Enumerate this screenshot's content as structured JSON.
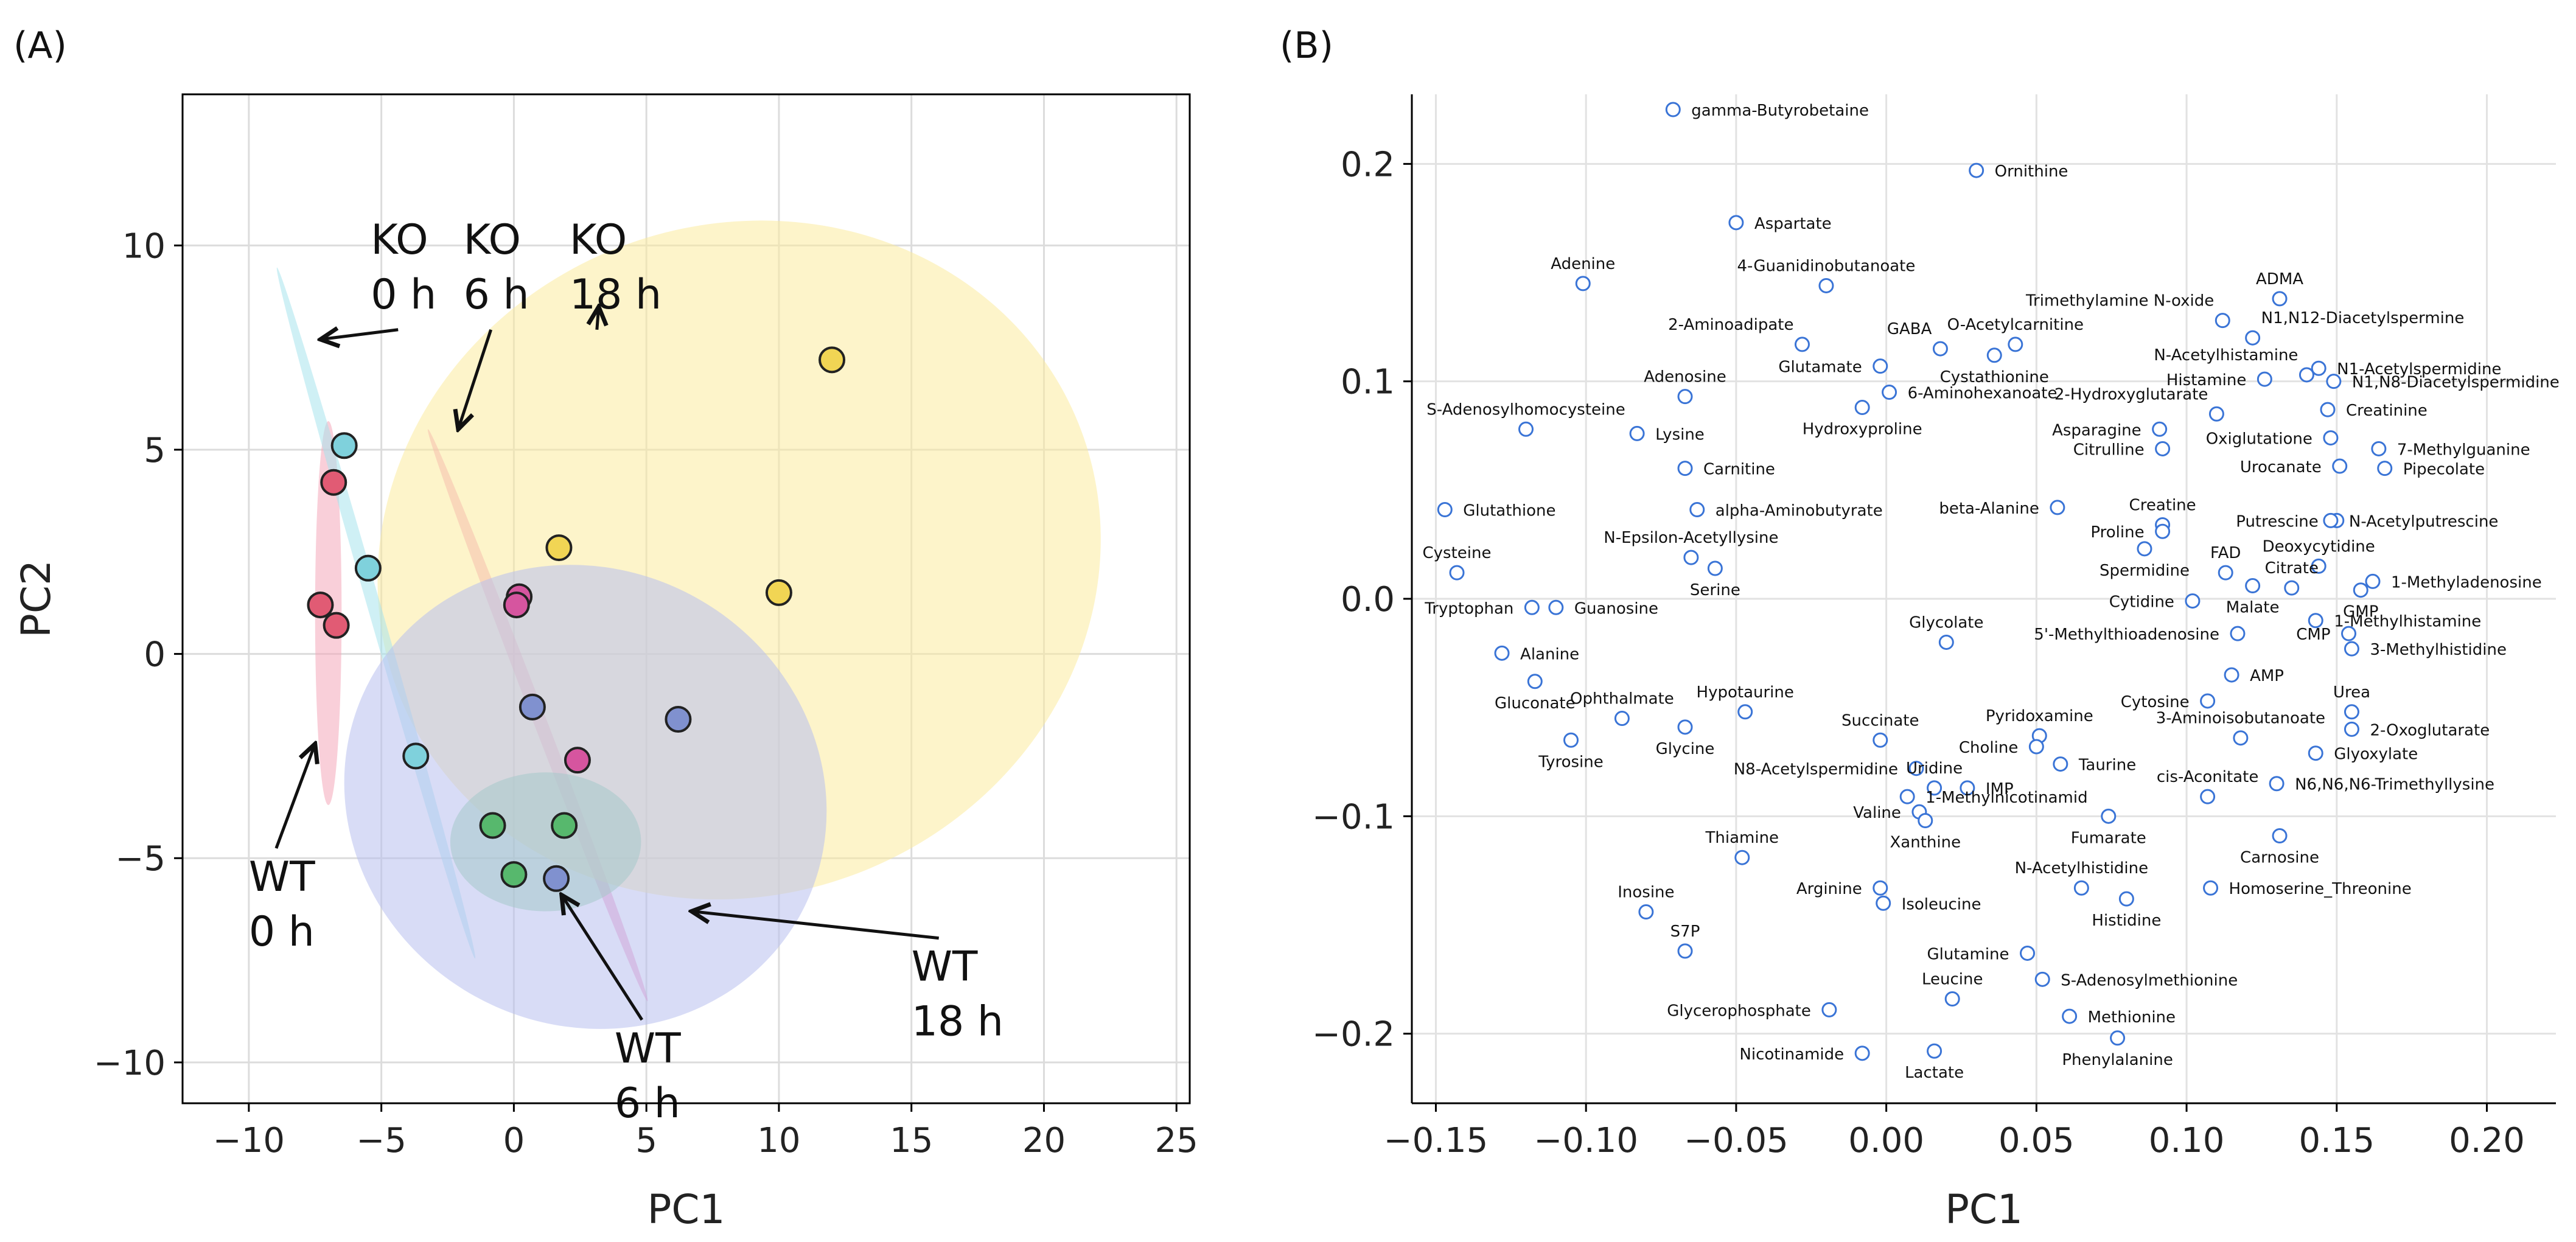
{
  "panels": {
    "A": {
      "label": "(A)",
      "chart_data": {
        "type": "scatter",
        "xlabel": "PC1",
        "ylabel": "PC2",
        "xlim": [
          -12.5,
          25.5
        ],
        "ylim": [
          -11,
          13.7
        ],
        "xticks": [
          -10,
          -5,
          0,
          5,
          10,
          15,
          20,
          25
        ],
        "yticks": [
          -10,
          -5,
          0,
          5,
          10
        ],
        "xtick_labels": [
          "−10",
          "−5",
          "0",
          "5",
          "10",
          "15",
          "20",
          "25"
        ],
        "ytick_labels": [
          "−10",
          "−5",
          "0",
          "5",
          "10"
        ],
        "grid": true,
        "series": [
          {
            "name": "KO 0 h",
            "color": "#e15b74",
            "ellipse_color": "#f4a7b9",
            "ellipse": {
              "cx": -7.0,
              "cy": 1.0,
              "rx": 0.5,
              "ry": 4.7,
              "angle": 0
            },
            "points": [
              [
                -6.8,
                4.2
              ],
              [
                -7.3,
                1.2
              ],
              [
                -6.7,
                0.7
              ]
            ]
          },
          {
            "name": "KO 6 h",
            "color": "#d6559f",
            "ellipse_color": "#ee88bf",
            "ellipse": {
              "cx": 0.9,
              "cy": -1.5,
              "rx": 0.25,
              "ry": 7.5,
              "angle": 21
            },
            "points": [
              [
                0.2,
                1.4
              ],
              [
                0.1,
                1.2
              ],
              [
                2.4,
                -2.6
              ]
            ]
          },
          {
            "name": "KO 18 h",
            "color": "#f1d554",
            "ellipse_color": "#fbeb9e",
            "ellipse": {
              "cx": 8.5,
              "cy": 2.3,
              "rx": 13.8,
              "ry": 8.2,
              "angle": 22
            },
            "points": [
              [
                12.0,
                7.2
              ],
              [
                1.7,
                2.6
              ],
              [
                10.0,
                1.5
              ]
            ]
          },
          {
            "name": "WT 0 h",
            "color": "#7fd1dc",
            "ellipse_color": "#a8e4ec",
            "ellipse": {
              "cx": -5.2,
              "cy": 1.0,
              "rx": 0.25,
              "ry": 8.8,
              "angle": 16
            },
            "points": [
              [
                -6.4,
                5.1
              ],
              [
                -5.5,
                2.1
              ],
              [
                -3.7,
                -2.5
              ]
            ]
          },
          {
            "name": "WT 6 h",
            "color": "#57b86d",
            "ellipse_color": "#8fd39c",
            "ellipse": {
              "cx": 1.2,
              "cy": -4.6,
              "rx": 3.6,
              "ry": 1.7,
              "angle": 0
            },
            "points": [
              [
                -0.8,
                -4.2
              ],
              [
                1.9,
                -4.2
              ],
              [
                0.0,
                -5.4
              ]
            ]
          },
          {
            "name": "WT 18 h",
            "color": "#8091cf",
            "ellipse_color": "#b8c0ef",
            "ellipse": {
              "cx": 2.7,
              "cy": -3.5,
              "rx": 8.6,
              "ry": 6.0,
              "angle": 61
            },
            "points": [
              [
                0.7,
                -1.3
              ],
              [
                6.2,
                -1.6
              ],
              [
                1.6,
                -5.5
              ]
            ]
          }
        ],
        "annotations": [
          {
            "lines": [
              "KO",
              "0 h"
            ],
            "tx": -5.4,
            "ty": 9.8,
            "ax": -7.3,
            "ay": 7.7
          },
          {
            "lines": [
              "KO",
              "6 h"
            ],
            "tx": -1.9,
            "ty": 9.8,
            "ax": -2.1,
            "ay": 5.5
          },
          {
            "lines": [
              "KO",
              "18 h"
            ],
            "tx": 2.1,
            "ty": 9.8,
            "ax": 3.2,
            "ay": 8.5
          },
          {
            "lines": [
              "WT",
              "0 h"
            ],
            "tx": -10.0,
            "ty": -5.8,
            "ax": -7.5,
            "ay": -2.2
          },
          {
            "lines": [
              "WT",
              "6 h"
            ],
            "tx": 3.8,
            "ty": -10.0,
            "ax": 1.8,
            "ay": -5.9
          },
          {
            "lines": [
              "WT",
              "18 h"
            ],
            "tx": 15.0,
            "ty": -8.0,
            "ax": 6.7,
            "ay": -6.3
          }
        ]
      }
    },
    "B": {
      "label": "(B)",
      "chart_data": {
        "type": "scatter",
        "xlabel": "PC1",
        "ylabel": "",
        "xlim": [
          -0.158,
          0.223
        ],
        "ylim": [
          -0.232,
          0.232
        ],
        "xticks": [
          -0.15,
          -0.1,
          -0.05,
          0.0,
          0.05,
          0.1,
          0.15,
          0.2
        ],
        "yticks": [
          -0.2,
          -0.1,
          0.0,
          0.1,
          0.2
        ],
        "xtick_labels": [
          "−0.15",
          "−0.10",
          "−0.05",
          "0.00",
          "0.05",
          "0.10",
          "0.15",
          "0.20"
        ],
        "ytick_labels": [
          "−0.2",
          "−0.1",
          "0.0",
          "0.1",
          "0.2"
        ],
        "grid": true,
        "marker_color": "#3a74d6",
        "points": [
          {
            "name": "gamma-Butyrobetaine",
            "x": -0.071,
            "y": 0.225,
            "pos": "r"
          },
          {
            "name": "Ornithine",
            "x": 0.03,
            "y": 0.197,
            "pos": "r"
          },
          {
            "name": "Aspartate",
            "x": -0.05,
            "y": 0.173,
            "pos": "r"
          },
          {
            "name": "Adenine",
            "x": -0.101,
            "y": 0.145,
            "pos": "t"
          },
          {
            "name": "4-Guanidinobutanoate",
            "x": -0.02,
            "y": 0.144,
            "pos": "t"
          },
          {
            "name": "ADMA",
            "x": 0.131,
            "y": 0.138,
            "pos": "t"
          },
          {
            "name": "Trimethylamine N-oxide",
            "x": 0.112,
            "y": 0.128,
            "pos": "tl"
          },
          {
            "name": "N1,N12-Diacetylspermine",
            "x": 0.122,
            "y": 0.12,
            "pos": "tr"
          },
          {
            "name": "2-Aminoadipate",
            "x": -0.028,
            "y": 0.117,
            "pos": "tl"
          },
          {
            "name": "GABA",
            "x": 0.018,
            "y": 0.115,
            "pos": "tl"
          },
          {
            "name": "O-Acetylcarnitine",
            "x": 0.043,
            "y": 0.117,
            "pos": "t"
          },
          {
            "name": "Glutamate",
            "x": -0.002,
            "y": 0.107,
            "pos": "l"
          },
          {
            "name": "Cystathionine",
            "x": 0.036,
            "y": 0.112,
            "pos": "b"
          },
          {
            "name": "N-Acetylhistamine",
            "x": 0.14,
            "y": 0.103,
            "pos": "tl"
          },
          {
            "name": "N1-Acetylspermidine",
            "x": 0.144,
            "y": 0.106,
            "pos": "r"
          },
          {
            "name": "Histamine",
            "x": 0.126,
            "y": 0.101,
            "pos": "l"
          },
          {
            "name": "N1,N8-Diacetylspermidine",
            "x": 0.149,
            "y": 0.1,
            "pos": "r"
          },
          {
            "name": "Adenosine",
            "x": -0.067,
            "y": 0.093,
            "pos": "t"
          },
          {
            "name": "6-Aminohexanoate",
            "x": 0.001,
            "y": 0.095,
            "pos": "r"
          },
          {
            "name": "Hydroxyproline",
            "x": -0.008,
            "y": 0.088,
            "pos": "b"
          },
          {
            "name": "2-Hydroxyglutarate",
            "x": 0.11,
            "y": 0.085,
            "pos": "tl"
          },
          {
            "name": "Creatinine",
            "x": 0.147,
            "y": 0.087,
            "pos": "r"
          },
          {
            "name": "S-Adenosylhomocysteine",
            "x": -0.12,
            "y": 0.078,
            "pos": "t"
          },
          {
            "name": "Lysine",
            "x": -0.083,
            "y": 0.076,
            "pos": "r"
          },
          {
            "name": "Asparagine",
            "x": 0.091,
            "y": 0.078,
            "pos": "l"
          },
          {
            "name": "Oxiglutatione",
            "x": 0.148,
            "y": 0.074,
            "pos": "l"
          },
          {
            "name": "Citrulline",
            "x": 0.092,
            "y": 0.069,
            "pos": "l"
          },
          {
            "name": "7-Methylguanine",
            "x": 0.164,
            "y": 0.069,
            "pos": "r"
          },
          {
            "name": "Urocanate",
            "x": 0.151,
            "y": 0.061,
            "pos": "l"
          },
          {
            "name": "Pipecolate",
            "x": 0.166,
            "y": 0.06,
            "pos": "r"
          },
          {
            "name": "Carnitine",
            "x": -0.067,
            "y": 0.06,
            "pos": "r"
          },
          {
            "name": "Glutathione",
            "x": -0.147,
            "y": 0.041,
            "pos": "r"
          },
          {
            "name": "alpha-Aminobutyrate",
            "x": -0.063,
            "y": 0.041,
            "pos": "r"
          },
          {
            "name": "beta-Alanine",
            "x": 0.057,
            "y": 0.042,
            "pos": "l"
          },
          {
            "name": "Creatine",
            "x": 0.092,
            "y": 0.034,
            "pos": "t"
          },
          {
            "name": "Putrescine",
            "x": 0.15,
            "y": 0.036,
            "pos": "l"
          },
          {
            "name": "N-Acetylputrescine",
            "x": 0.148,
            "y": 0.036,
            "pos": "r"
          },
          {
            "name": "Proline",
            "x": 0.092,
            "y": 0.031,
            "pos": "l"
          },
          {
            "name": "N-Epsilon-Acetyllysine",
            "x": -0.065,
            "y": 0.019,
            "pos": "t"
          },
          {
            "name": "Serine",
            "x": -0.057,
            "y": 0.014,
            "pos": "b"
          },
          {
            "name": "Cysteine",
            "x": -0.143,
            "y": 0.012,
            "pos": "t"
          },
          {
            "name": "Spermidine",
            "x": 0.086,
            "y": 0.023,
            "pos": "b"
          },
          {
            "name": "Deoxycytidine",
            "x": 0.144,
            "y": 0.015,
            "pos": "t"
          },
          {
            "name": "FAD",
            "x": 0.113,
            "y": 0.012,
            "pos": "t"
          },
          {
            "name": "Citrate",
            "x": 0.135,
            "y": 0.005,
            "pos": "t"
          },
          {
            "name": "Malate",
            "x": 0.122,
            "y": 0.006,
            "pos": "b"
          },
          {
            "name": "1-Methyladenosine",
            "x": 0.162,
            "y": 0.008,
            "pos": "r"
          },
          {
            "name": "GMP",
            "x": 0.158,
            "y": 0.004,
            "pos": "b"
          },
          {
            "name": "Cytidine",
            "x": 0.102,
            "y": -0.001,
            "pos": "l"
          },
          {
            "name": "Tryptophan",
            "x": -0.118,
            "y": -0.004,
            "pos": "l"
          },
          {
            "name": "Guanosine",
            "x": -0.11,
            "y": -0.004,
            "pos": "r"
          },
          {
            "name": "1-Methylhistamine",
            "x": 0.143,
            "y": -0.01,
            "pos": "r"
          },
          {
            "name": "5'-Methylthioadenosine",
            "x": 0.117,
            "y": -0.016,
            "pos": "l"
          },
          {
            "name": "CMP",
            "x": 0.154,
            "y": -0.016,
            "pos": "l"
          },
          {
            "name": "Glycolate",
            "x": 0.02,
            "y": -0.02,
            "pos": "t"
          },
          {
            "name": "3-Methylhistidine",
            "x": 0.155,
            "y": -0.023,
            "pos": "r"
          },
          {
            "name": "Alanine",
            "x": -0.128,
            "y": -0.025,
            "pos": "r"
          },
          {
            "name": "AMP",
            "x": 0.115,
            "y": -0.035,
            "pos": "r"
          },
          {
            "name": "Gluconate",
            "x": -0.117,
            "y": -0.038,
            "pos": "b"
          },
          {
            "name": "Ophthalmate",
            "x": -0.088,
            "y": -0.055,
            "pos": "t"
          },
          {
            "name": "Hypotaurine",
            "x": -0.047,
            "y": -0.052,
            "pos": "t"
          },
          {
            "name": "Cytosine",
            "x": 0.107,
            "y": -0.047,
            "pos": "l"
          },
          {
            "name": "Urea",
            "x": 0.155,
            "y": -0.052,
            "pos": "t"
          },
          {
            "name": "Succinate",
            "x": -0.002,
            "y": -0.065,
            "pos": "t"
          },
          {
            "name": "Pyridoxamine",
            "x": 0.051,
            "y": -0.063,
            "pos": "t"
          },
          {
            "name": "3-Aminoisobutanoate",
            "x": 0.118,
            "y": -0.064,
            "pos": "t"
          },
          {
            "name": "2-Oxoglutarate",
            "x": 0.155,
            "y": -0.06,
            "pos": "r"
          },
          {
            "name": "Glycine",
            "x": -0.067,
            "y": -0.059,
            "pos": "b"
          },
          {
            "name": "Tyrosine",
            "x": -0.105,
            "y": -0.065,
            "pos": "b"
          },
          {
            "name": "Choline",
            "x": 0.05,
            "y": -0.068,
            "pos": "l"
          },
          {
            "name": "Glyoxylate",
            "x": 0.143,
            "y": -0.071,
            "pos": "r"
          },
          {
            "name": "Taurine",
            "x": 0.058,
            "y": -0.076,
            "pos": "r"
          },
          {
            "name": "N8-Acetylspermidine",
            "x": 0.01,
            "y": -0.078,
            "pos": "l"
          },
          {
            "name": "Uridine",
            "x": 0.016,
            "y": -0.087,
            "pos": "t"
          },
          {
            "name": "IMP",
            "x": 0.027,
            "y": -0.087,
            "pos": "r"
          },
          {
            "name": "cis-Aconitate",
            "x": 0.107,
            "y": -0.091,
            "pos": "t"
          },
          {
            "name": "N6,N6,N6-Trimethyllysine",
            "x": 0.13,
            "y": -0.085,
            "pos": "r"
          },
          {
            "name": "1-Methylnicotinamid",
            "x": 0.007,
            "y": -0.091,
            "pos": "r"
          },
          {
            "name": "Valine",
            "x": 0.011,
            "y": -0.098,
            "pos": "l"
          },
          {
            "name": "Xanthine",
            "x": 0.013,
            "y": -0.102,
            "pos": "b"
          },
          {
            "name": "Fumarate",
            "x": 0.074,
            "y": -0.1,
            "pos": "b"
          },
          {
            "name": "Carnosine",
            "x": 0.131,
            "y": -0.109,
            "pos": "b"
          },
          {
            "name": "Thiamine",
            "x": -0.048,
            "y": -0.119,
            "pos": "t"
          },
          {
            "name": "N-Acetylhistidine",
            "x": 0.065,
            "y": -0.133,
            "pos": "t"
          },
          {
            "name": "Arginine",
            "x": -0.002,
            "y": -0.133,
            "pos": "l"
          },
          {
            "name": "Isoleucine",
            "x": -0.001,
            "y": -0.14,
            "pos": "r"
          },
          {
            "name": "Homoserine_Threonine",
            "x": 0.108,
            "y": -0.133,
            "pos": "r"
          },
          {
            "name": "Histidine",
            "x": 0.08,
            "y": -0.138,
            "pos": "b"
          },
          {
            "name": "Inosine",
            "x": -0.08,
            "y": -0.144,
            "pos": "t"
          },
          {
            "name": "S7P",
            "x": -0.067,
            "y": -0.162,
            "pos": "t"
          },
          {
            "name": "Glutamine",
            "x": 0.047,
            "y": -0.163,
            "pos": "l"
          },
          {
            "name": "S-Adenosylmethionine",
            "x": 0.052,
            "y": -0.175,
            "pos": "r"
          },
          {
            "name": "Leucine",
            "x": 0.022,
            "y": -0.184,
            "pos": "t"
          },
          {
            "name": "Glycerophosphate",
            "x": -0.019,
            "y": -0.189,
            "pos": "l"
          },
          {
            "name": "Methionine",
            "x": 0.061,
            "y": -0.192,
            "pos": "r"
          },
          {
            "name": "Phenylalanine",
            "x": 0.077,
            "y": -0.202,
            "pos": "b"
          },
          {
            "name": "Nicotinamide",
            "x": -0.008,
            "y": -0.209,
            "pos": "l"
          },
          {
            "name": "Lactate",
            "x": 0.016,
            "y": -0.208,
            "pos": "b"
          }
        ]
      }
    }
  }
}
